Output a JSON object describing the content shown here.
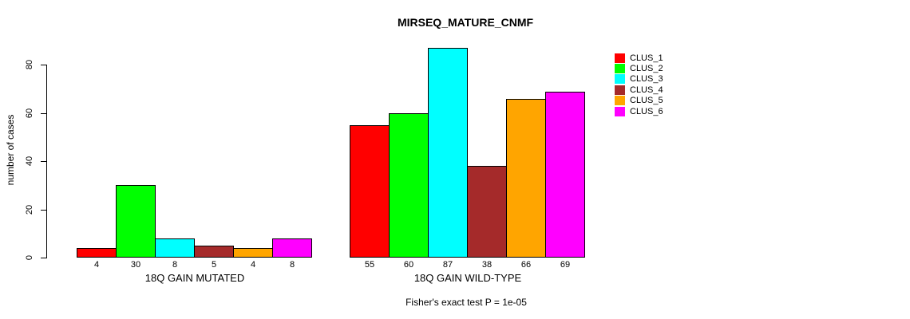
{
  "chart_data": {
    "type": "bar",
    "title": "MIRSEQ_MATURE_CNMF",
    "ylabel": "number of cases",
    "xlabel": "",
    "categories": [
      "18Q GAIN MUTATED",
      "18Q GAIN WILD-TYPE"
    ],
    "series": [
      {
        "name": "CLUS_1",
        "color": "#FF0000",
        "values": [
          4,
          55
        ]
      },
      {
        "name": "CLUS_2",
        "color": "#00FF00",
        "values": [
          30,
          60
        ]
      },
      {
        "name": "CLUS_3",
        "color": "#00FFFF",
        "values": [
          8,
          87
        ]
      },
      {
        "name": "CLUS_4",
        "color": "#A52A2A",
        "values": [
          5,
          38
        ]
      },
      {
        "name": "CLUS_5",
        "color": "#FFA500",
        "values": [
          4,
          66
        ]
      },
      {
        "name": "CLUS_6",
        "color": "#FF00FF",
        "values": [
          8,
          69
        ]
      }
    ],
    "yticks": [
      0,
      20,
      40,
      60,
      80
    ],
    "ylim": [
      0,
      87
    ],
    "grid": false,
    "legend_position": "right",
    "legend_entries": [
      "CLUS_1",
      "CLUS_2",
      "CLUS_3",
      "CLUS_4",
      "CLUS_5",
      "CLUS_6"
    ],
    "bar_value_labels": true,
    "annotation": "Fisher's exact test P = 1e-05"
  }
}
